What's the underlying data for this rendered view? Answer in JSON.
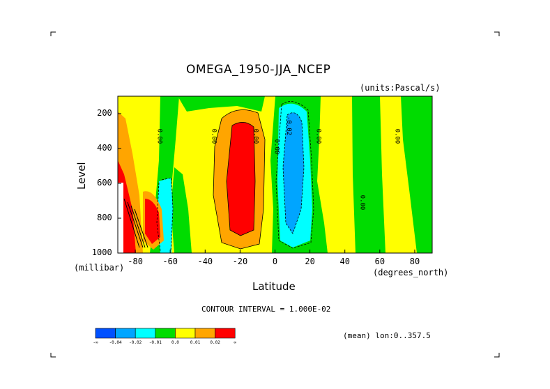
{
  "chart_data": {
    "type": "contour",
    "title": "OMEGA_1950-JJA_NCEP",
    "units": "(units:Pascal/s)",
    "xlabel": "Latitude",
    "x_units": "(degrees_north)",
    "ylabel": "Level",
    "y_units": "(millibar)",
    "xlim": [
      -90,
      90
    ],
    "ylim": [
      1000,
      100
    ],
    "x_ticks": [
      "-80",
      "-60",
      "-40",
      "-20",
      "0",
      "20",
      "40",
      "60",
      "80"
    ],
    "x_tick_values": [
      -80,
      -60,
      -40,
      -20,
      0,
      20,
      40,
      60,
      80
    ],
    "y_ticks": [
      "200",
      "400",
      "600",
      "800",
      "1000"
    ],
    "y_tick_values": [
      200,
      400,
      600,
      800,
      1000
    ],
    "contour_interval_text": "CONTOUR INTERVAL = 1.000E-02",
    "mean_text": "(mean) lon:0..357.5",
    "contour_labels": [
      {
        "text": "0.00",
        "lat": -67,
        "level": 330
      },
      {
        "text": "0.00",
        "lat": -36,
        "level": 330
      },
      {
        "text": "0.00",
        "lat": -12,
        "level": 330
      },
      {
        "text": "0.00",
        "lat": 0,
        "level": 390
      },
      {
        "text": "-0.02",
        "lat": 7,
        "level": 270
      },
      {
        "text": "0.00",
        "lat": 24,
        "level": 330
      },
      {
        "text": "0.00",
        "lat": 49,
        "level": 710
      },
      {
        "text": "0.00",
        "lat": 69,
        "level": 330
      }
    ],
    "colorbar": {
      "colors": [
        "#0050ff",
        "#00a5ff",
        "#00ffff",
        "#00dc00",
        "#ffff00",
        "#ffa500",
        "#ff0000"
      ],
      "labels": [
        "-∞",
        "-0.04",
        "-0.02",
        "-0.01",
        "0.0",
        "0.01",
        "0.02",
        "∞"
      ]
    }
  }
}
